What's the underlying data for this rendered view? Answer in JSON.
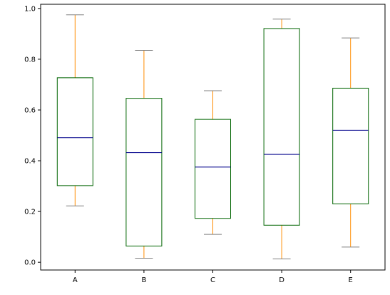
{
  "chart_data": {
    "type": "box",
    "title": "",
    "xlabel": "",
    "ylabel": "",
    "ylim": [
      -0.0305,
      1.0165
    ],
    "categories": [
      "A",
      "B",
      "C",
      "D",
      "E"
    ],
    "boxes": [
      {
        "label": "A",
        "whisker_low": 0.222,
        "q1": 0.302,
        "median": 0.491,
        "q3": 0.727,
        "whisker_high": 0.975
      },
      {
        "label": "B",
        "whisker_low": 0.016,
        "q1": 0.064,
        "median": 0.432,
        "q3": 0.646,
        "whisker_high": 0.835
      },
      {
        "label": "C",
        "whisker_low": 0.11,
        "q1": 0.173,
        "median": 0.375,
        "q3": 0.563,
        "whisker_high": 0.676
      },
      {
        "label": "D",
        "whisker_low": 0.013,
        "q1": 0.146,
        "median": 0.425,
        "q3": 0.921,
        "whisker_high": 0.958
      },
      {
        "label": "E",
        "whisker_low": 0.06,
        "q1": 0.23,
        "median": 0.52,
        "q3": 0.686,
        "whisker_high": 0.884
      }
    ],
    "yticks": [
      0.0,
      0.2,
      0.4,
      0.6,
      0.8,
      1.0
    ],
    "ytick_labels": [
      "0.0",
      "0.2",
      "0.4",
      "0.6",
      "0.8",
      "1.0"
    ],
    "grid": false,
    "colors": {
      "box": "#006400",
      "whisker": "#ff8c00",
      "median": "#00008b",
      "cap": "#808080",
      "axis": "#000000"
    }
  }
}
